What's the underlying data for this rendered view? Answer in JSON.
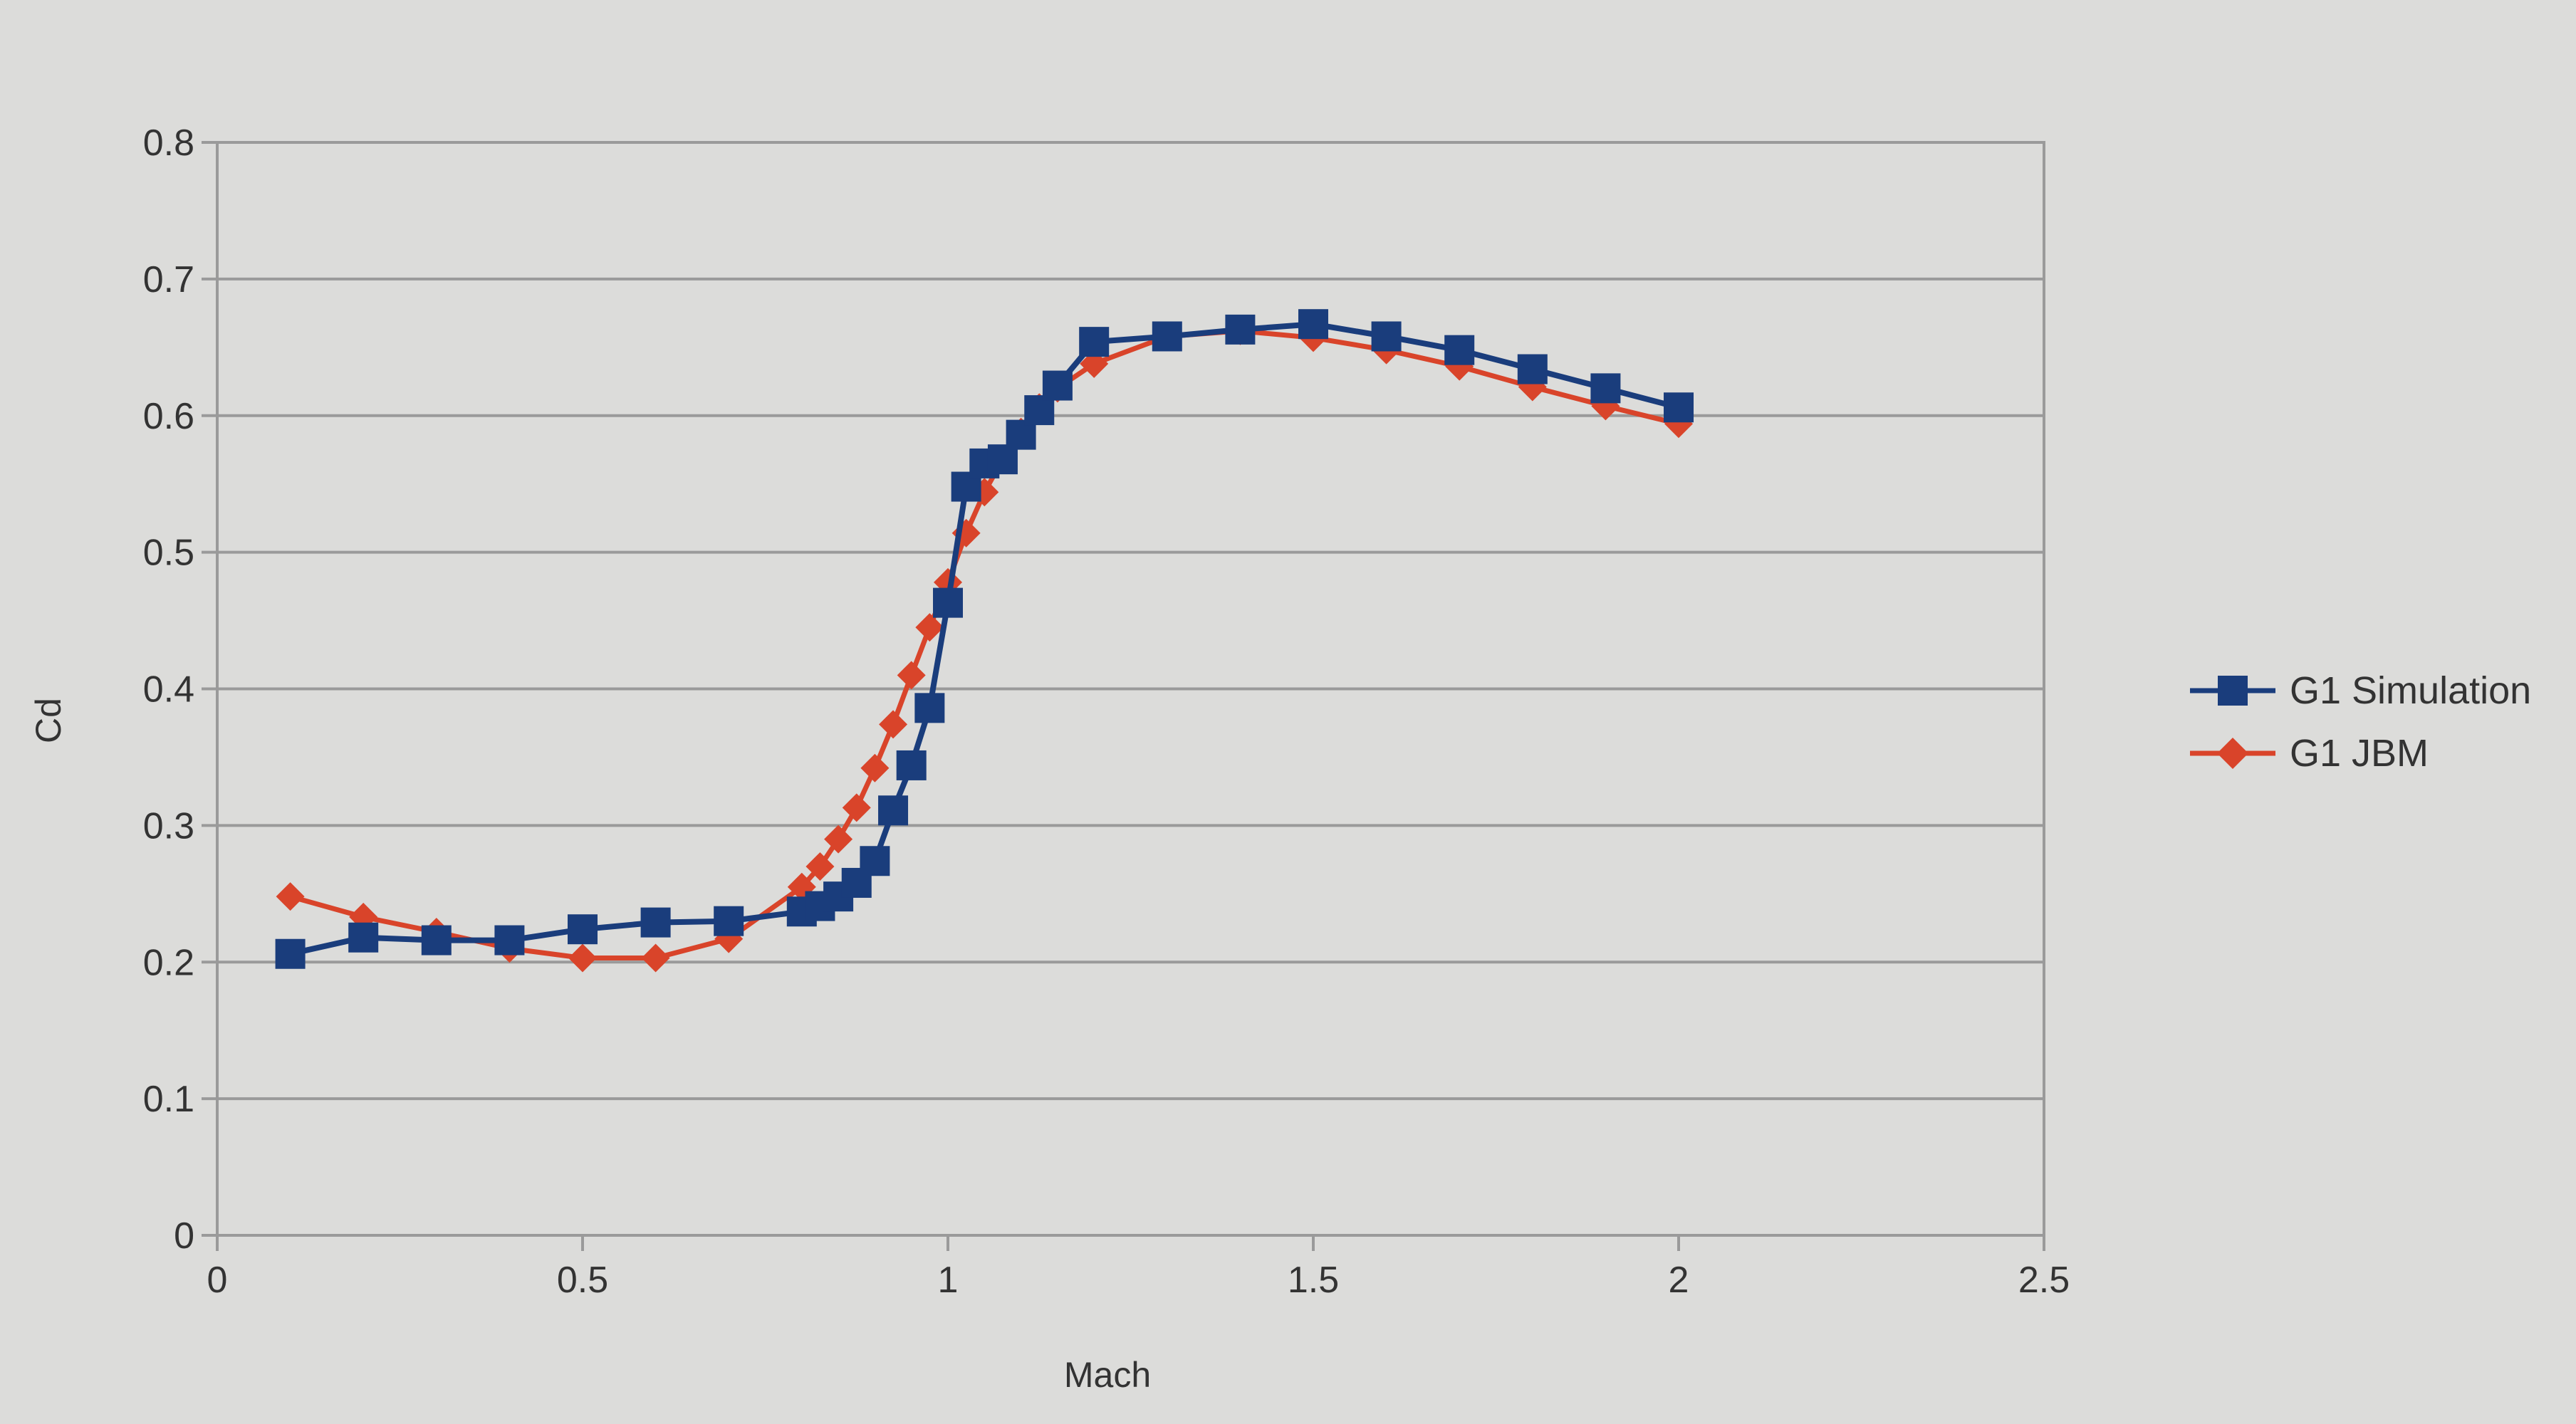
{
  "chart_data": {
    "type": "line",
    "title": "",
    "xlabel": "Mach",
    "ylabel": "Cd",
    "xlim": [
      0,
      2.5
    ],
    "ylim": [
      0,
      0.8
    ],
    "xticks": [
      "0",
      "0.5",
      "1",
      "1.5",
      "2",
      "2.5"
    ],
    "yticks": [
      "0",
      "0.1",
      "0.2",
      "0.3",
      "0.4",
      "0.5",
      "0.6",
      "0.7",
      "0.8"
    ],
    "grid": "horizontal",
    "legend_position": "right",
    "series": [
      {
        "name": "G1 Simulation",
        "color": "#1a3d7c",
        "marker": "square",
        "x": [
          0.1,
          0.2,
          0.3,
          0.4,
          0.5,
          0.6,
          0.7,
          0.8,
          0.825,
          0.85,
          0.875,
          0.9,
          0.925,
          0.95,
          0.975,
          1.0,
          1.025,
          1.05,
          1.075,
          1.1,
          1.125,
          1.15,
          1.2,
          1.3,
          1.4,
          1.5,
          1.6,
          1.7,
          1.8,
          1.9,
          2.0
        ],
        "y": [
          0.206,
          0.218,
          0.216,
          0.216,
          0.224,
          0.229,
          0.23,
          0.237,
          0.241,
          0.248,
          0.258,
          0.274,
          0.311,
          0.344,
          0.386,
          0.463,
          0.548,
          0.565,
          0.568,
          0.586,
          0.604,
          0.622,
          0.654,
          0.658,
          0.663,
          0.667,
          0.658,
          0.648,
          0.634,
          0.62,
          0.606
        ]
      },
      {
        "name": "G1 JBM",
        "color": "#d9442a",
        "marker": "diamond",
        "x": [
          0.1,
          0.2,
          0.3,
          0.4,
          0.5,
          0.6,
          0.7,
          0.8,
          0.825,
          0.85,
          0.875,
          0.9,
          0.925,
          0.95,
          0.975,
          1.0,
          1.025,
          1.05,
          1.075,
          1.1,
          1.125,
          1.15,
          1.2,
          1.3,
          1.4,
          1.5,
          1.6,
          1.7,
          1.8,
          1.9,
          2.0
        ],
        "y": [
          0.248,
          0.233,
          0.222,
          0.21,
          0.203,
          0.203,
          0.217,
          0.255,
          0.27,
          0.29,
          0.313,
          0.342,
          0.374,
          0.41,
          0.445,
          0.478,
          0.514,
          0.544,
          0.568,
          0.588,
          0.606,
          0.62,
          0.638,
          0.658,
          0.662,
          0.657,
          0.648,
          0.636,
          0.621,
          0.607,
          0.594
        ]
      }
    ]
  }
}
